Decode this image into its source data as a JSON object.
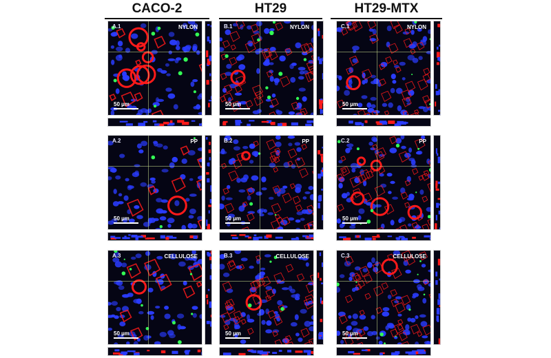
{
  "columns": [
    {
      "header": "CACO-2"
    },
    {
      "header": "HT29"
    },
    {
      "header": "HT29-MTX"
    }
  ],
  "panels": [
    [
      {
        "id": "A.1",
        "material": "NYLON",
        "scale": "50 µm"
      },
      {
        "id": "A.2",
        "material": "PP",
        "scale": "50 µm"
      },
      {
        "id": "A.3",
        "material": "CELLULOSE",
        "scale": "50 µm"
      }
    ],
    [
      {
        "id": "B.1",
        "material": "NYLON",
        "scale": "50 µm"
      },
      {
        "id": "B.2",
        "material": "PP",
        "scale": "50 µm"
      },
      {
        "id": "B.3",
        "material": "CELLULOSE",
        "scale": "50 µm"
      }
    ],
    [
      {
        "id": "C.1",
        "material": "NYLON",
        "scale": "50 µm"
      },
      {
        "id": "C.2",
        "material": "PP",
        "scale": "50 µm"
      },
      {
        "id": "C.3",
        "material": "CELLULOSE",
        "scale": "50 µm"
      }
    ]
  ],
  "colors": {
    "nuclei": "#2a3cff",
    "actin": "#ff1a1a",
    "marker": "#33ff55",
    "background": "#050514"
  }
}
